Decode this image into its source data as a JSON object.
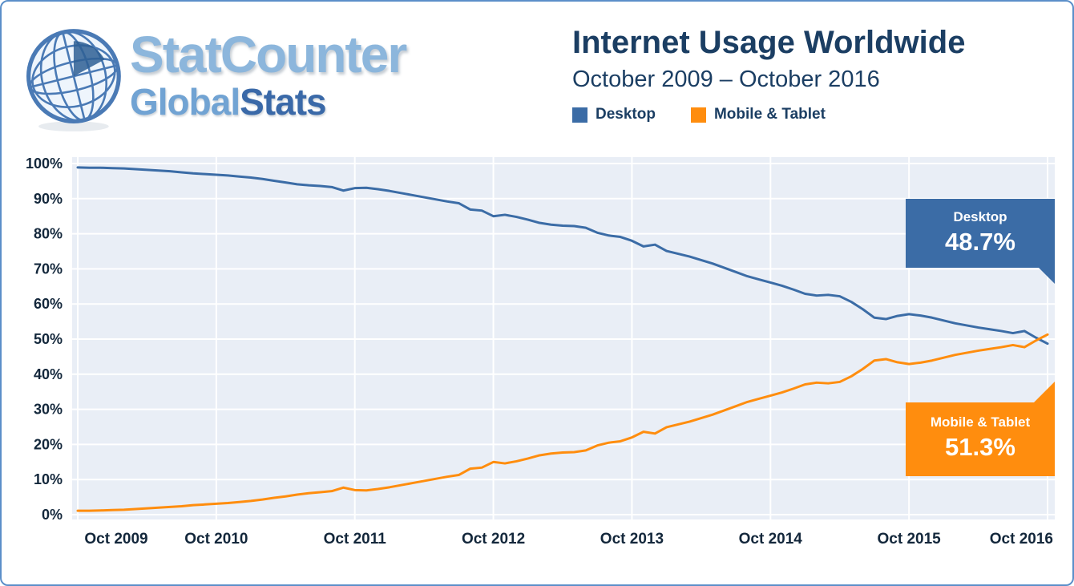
{
  "colors": {
    "desktop": "#3b6ca6",
    "mobile": "#ff8d0e",
    "title_navy": "#1b3e63",
    "tick_label": "#13273b",
    "plot_background": "#e9eef6",
    "frame_border": "#5b8fc9",
    "logo_light": "#8cb6dc",
    "logo_mid": "#71a3d3",
    "logo_dark": "#3a69a8",
    "gridline": "#ffffff"
  },
  "header": {
    "logo": {
      "brand": "StatCounter",
      "global": "Global",
      "stats": "Stats"
    }
  },
  "chart_data": {
    "type": "line",
    "title": "Internet Usage Worldwide",
    "subtitle": "October 2009 – October 2016",
    "x_description": "monthly values from Oct 2009 to Oct 2016 (85 points)",
    "ylim": [
      0,
      100
    ],
    "grid": true,
    "legend_position": "top-right under subtitle",
    "plot_bg": "#e9eef6",
    "y_ticks": [
      {
        "value": 100,
        "label": "100%"
      },
      {
        "value": 90,
        "label": "90%"
      },
      {
        "value": 80,
        "label": "80%"
      },
      {
        "value": 70,
        "label": "70%"
      },
      {
        "value": 60,
        "label": "60%"
      },
      {
        "value": 50,
        "label": "50%"
      },
      {
        "value": 40,
        "label": "40%"
      },
      {
        "value": 30,
        "label": "30%"
      },
      {
        "value": 20,
        "label": "20%"
      },
      {
        "value": 10,
        "label": "10%"
      },
      {
        "value": 0,
        "label": "0%"
      }
    ],
    "x_ticks": [
      {
        "index": 0,
        "label": "Oct 2009"
      },
      {
        "index": 12,
        "label": "Oct 2010"
      },
      {
        "index": 24,
        "label": "Oct 2011"
      },
      {
        "index": 36,
        "label": "Oct 2012"
      },
      {
        "index": 48,
        "label": "Oct 2013"
      },
      {
        "index": 60,
        "label": "Oct 2014"
      },
      {
        "index": 72,
        "label": "Oct 2015"
      },
      {
        "index": 84,
        "label": "Oct 2016"
      }
    ],
    "series": [
      {
        "name": "Desktop",
        "color": "#3b6ca6",
        "values": [
          98.9,
          98.8,
          98.8,
          98.7,
          98.6,
          98.4,
          98.2,
          98.0,
          97.8,
          97.5,
          97.2,
          97.0,
          96.8,
          96.6,
          96.3,
          96.0,
          95.6,
          95.1,
          94.6,
          94.1,
          93.8,
          93.6,
          93.3,
          92.3,
          93.0,
          93.1,
          92.7,
          92.2,
          91.6,
          91.0,
          90.4,
          89.8,
          89.2,
          88.7,
          86.9,
          86.6,
          85.0,
          85.4,
          84.8,
          84.0,
          83.1,
          82.6,
          82.3,
          82.2,
          81.7,
          80.3,
          79.5,
          79.1,
          78.0,
          76.4,
          76.9,
          75.1,
          74.3,
          73.5,
          72.5,
          71.5,
          70.3,
          69.1,
          67.9,
          67.0,
          66.1,
          65.2,
          64.1,
          62.9,
          62.4,
          62.6,
          62.2,
          60.6,
          58.5,
          56.1,
          55.7,
          56.6,
          57.1,
          56.7,
          56.1,
          55.3,
          54.5,
          53.9,
          53.3,
          52.8,
          52.3,
          51.7,
          52.3,
          50.4,
          48.7
        ]
      },
      {
        "name": "Mobile & Tablet",
        "color": "#ff8d0e",
        "values": [
          1.1,
          1.1,
          1.2,
          1.3,
          1.4,
          1.6,
          1.8,
          2.0,
          2.2,
          2.4,
          2.7,
          2.9,
          3.1,
          3.3,
          3.6,
          3.9,
          4.3,
          4.8,
          5.2,
          5.7,
          6.1,
          6.4,
          6.7,
          7.7,
          7.0,
          6.9,
          7.3,
          7.8,
          8.4,
          9.0,
          9.6,
          10.2,
          10.8,
          11.3,
          13.1,
          13.4,
          15.0,
          14.6,
          15.2,
          16.0,
          16.9,
          17.4,
          17.7,
          17.8,
          18.3,
          19.7,
          20.5,
          20.9,
          22.0,
          23.6,
          23.1,
          24.9,
          25.7,
          26.5,
          27.5,
          28.5,
          29.7,
          30.9,
          32.1,
          33.0,
          33.9,
          34.8,
          35.9,
          37.1,
          37.6,
          37.4,
          37.8,
          39.4,
          41.5,
          43.9,
          44.3,
          43.4,
          42.9,
          43.3,
          43.9,
          44.7,
          45.5,
          46.1,
          46.7,
          47.2,
          47.7,
          48.3,
          47.7,
          49.6,
          51.3
        ]
      }
    ],
    "annotations": [
      {
        "series": "Desktop",
        "label": "Desktop",
        "value": "48.7%"
      },
      {
        "series": "Mobile & Tablet",
        "label": "Mobile & Tablet",
        "value": "51.3%"
      }
    ]
  }
}
